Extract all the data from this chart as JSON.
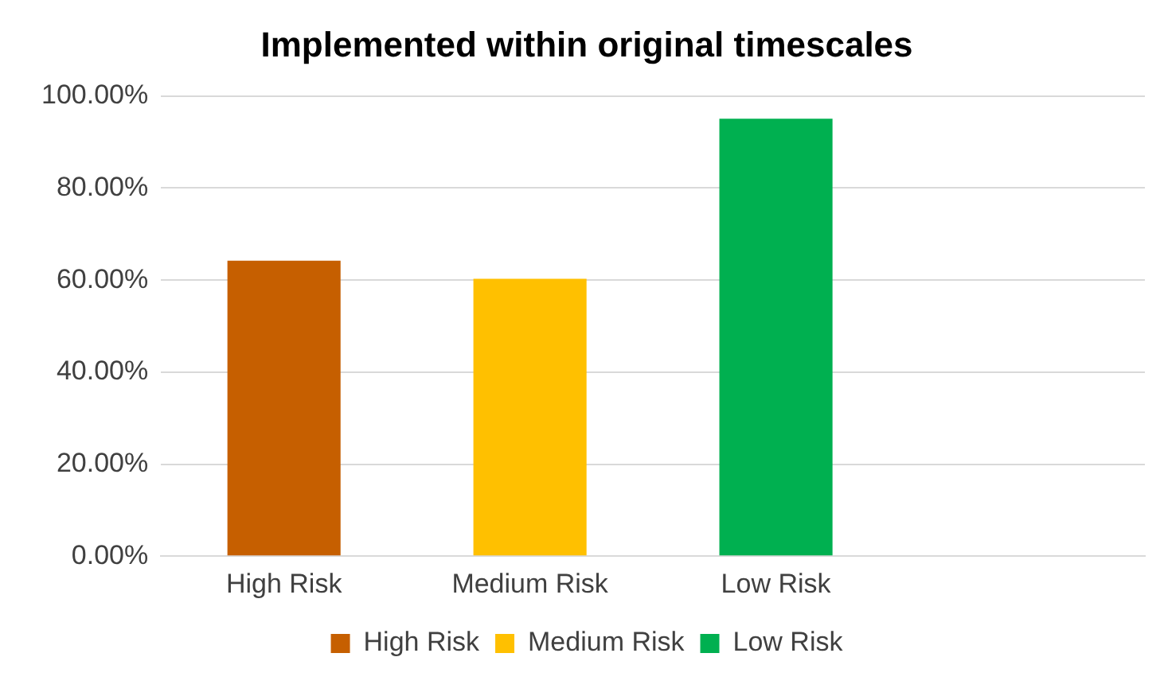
{
  "chart_data": {
    "type": "bar",
    "title": "Implemented within original timescales",
    "categories": [
      "High Risk",
      "Medium Risk",
      "Low Risk",
      null
    ],
    "series": [
      {
        "name": "High Risk",
        "color": "#c65f00",
        "values": [
          64.2,
          null,
          null,
          null
        ]
      },
      {
        "name": "Medium Risk",
        "color": "#ffc000",
        "values": [
          null,
          60.3,
          null,
          null
        ]
      },
      {
        "name": "Low Risk",
        "color": "#00b050",
        "values": [
          null,
          null,
          95.1,
          null
        ]
      }
    ],
    "ylim": [
      0,
      100
    ],
    "yticks": [
      {
        "value": 0,
        "label": "0.00%"
      },
      {
        "value": 20,
        "label": "20.00%"
      },
      {
        "value": 40,
        "label": "40.00%"
      },
      {
        "value": 60,
        "label": "60.00%"
      },
      {
        "value": 80,
        "label": "80.00%"
      },
      {
        "value": 100,
        "label": "100.00%"
      }
    ],
    "grid": "y",
    "legend": "bottom"
  }
}
